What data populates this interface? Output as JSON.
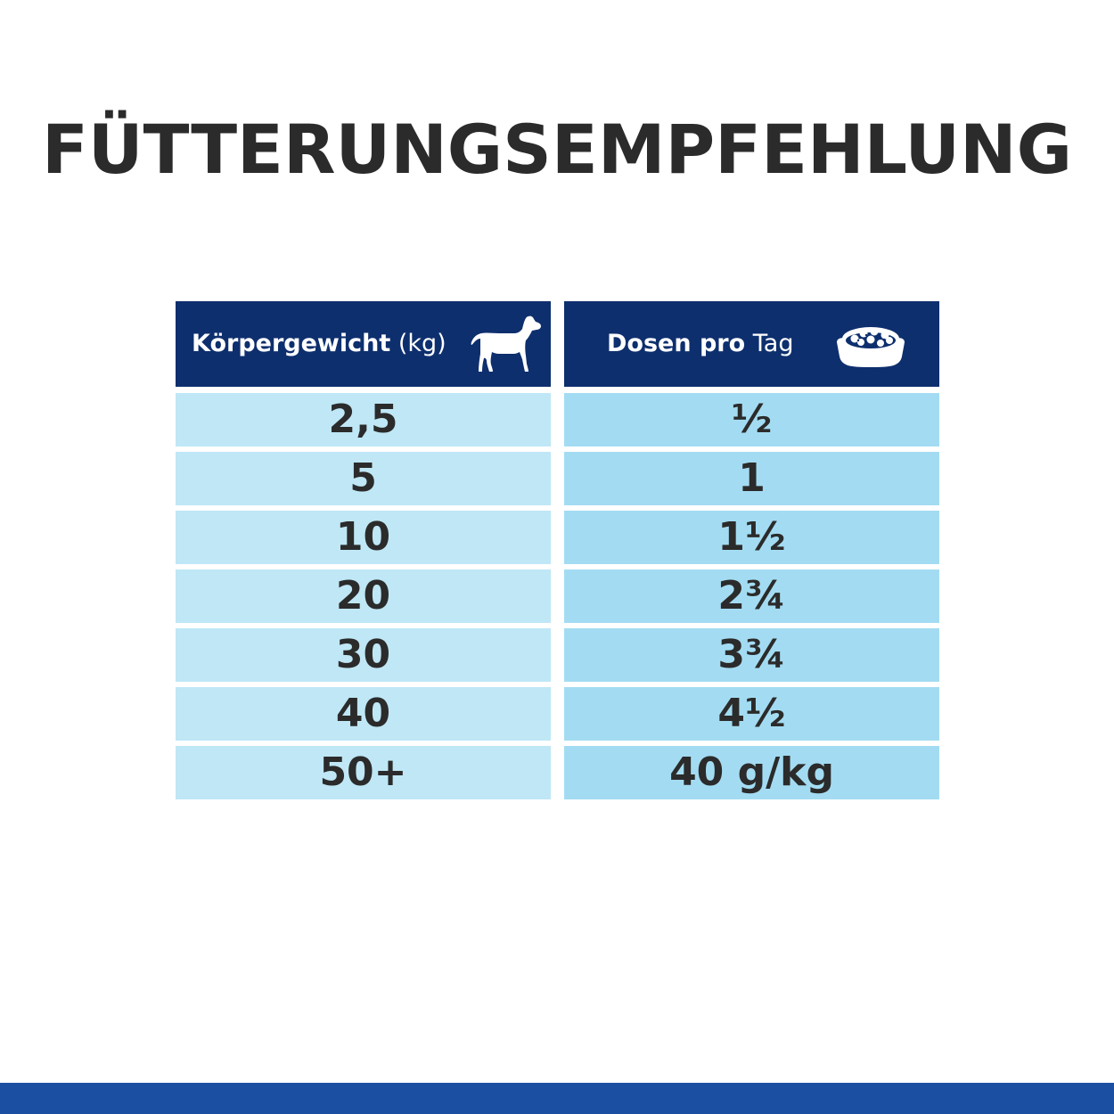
{
  "title": "FÜTTERUNGSEMPFEHLUNG",
  "table": {
    "left_header": {
      "strong": "Körpergewicht",
      "light": "(kg)",
      "icon": "dog-icon"
    },
    "right_header": {
      "strong": "Dosen pro",
      "light": "Tag",
      "icon": "food-bowl-icon"
    },
    "rows": [
      {
        "weight": "2,5",
        "amount": "½"
      },
      {
        "weight": "5",
        "amount": "1"
      },
      {
        "weight": "10",
        "amount": "1½"
      },
      {
        "weight": "20",
        "amount": "2¾"
      },
      {
        "weight": "30",
        "amount": "3¾"
      },
      {
        "weight": "40",
        "amount": "4½"
      },
      {
        "weight": "50+",
        "amount": "40 g/kg"
      }
    ]
  },
  "colors": {
    "header_bg": "#0e2f6e",
    "left_cell_bg": "#bfe7f6",
    "right_cell_bg": "#a3dcf2",
    "text": "#2b2b2b",
    "bottom_bar": "#1b4fa2"
  }
}
